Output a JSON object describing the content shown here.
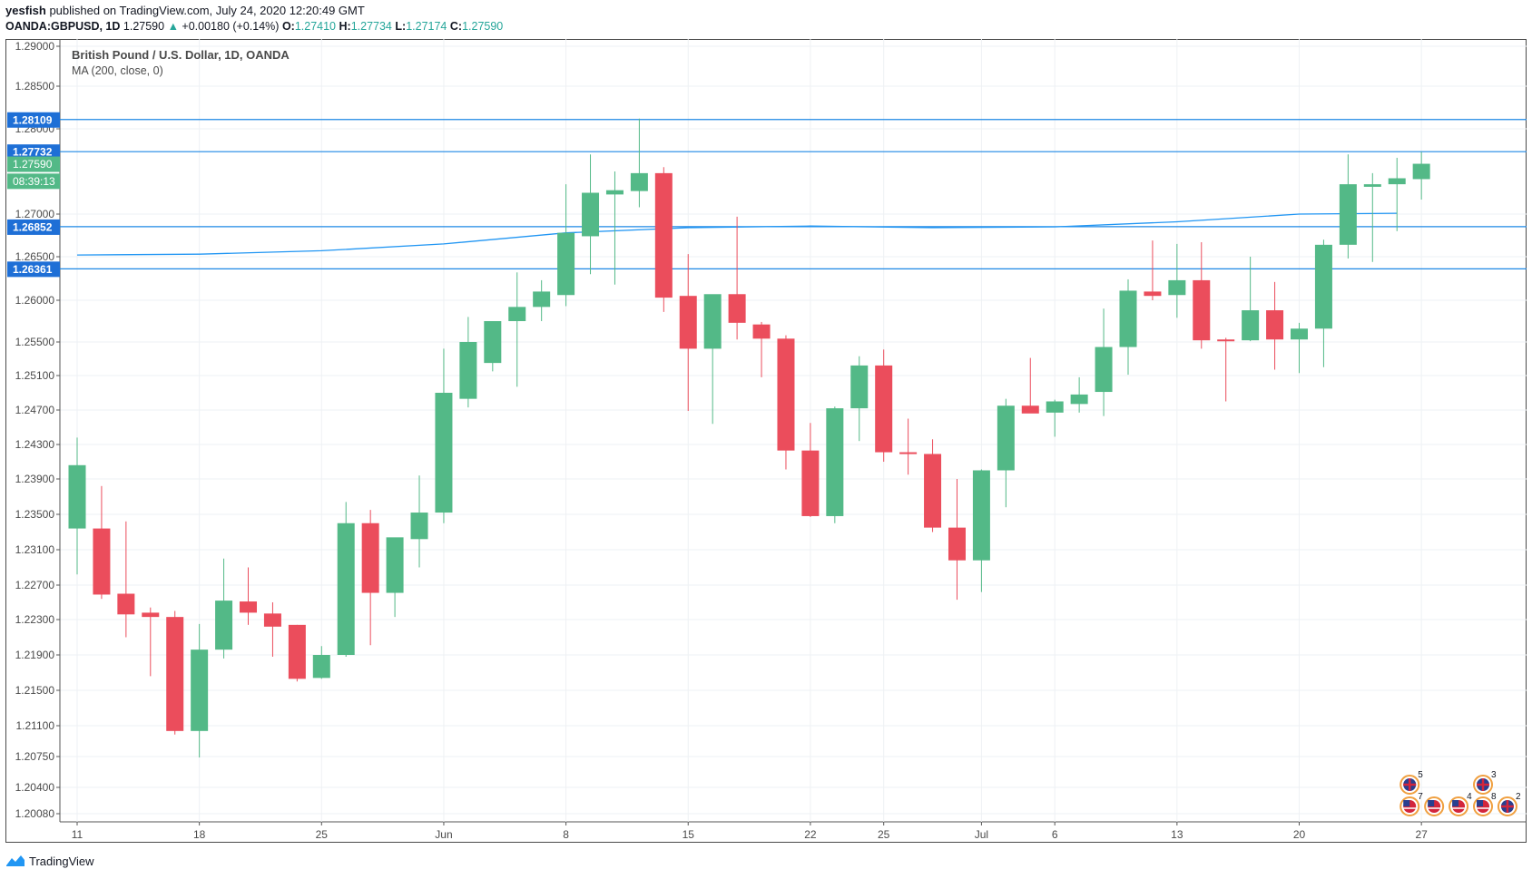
{
  "header": {
    "publisher": "yesfish",
    "published_text": "published on TradingView.com, July 24, 2020 12:20:49 GMT",
    "symbol": "OANDA:GBPUSD, 1D",
    "last": "1.27590",
    "change": "+0.00180 (+0.14%)",
    "o_label": "O:",
    "o": "1.27410",
    "h_label": "H:",
    "h": "1.27734",
    "l_label": "L:",
    "l": "1.27174",
    "c_label": "C:",
    "c": "1.27590"
  },
  "legend": {
    "title": "British Pound / U.S. Dollar, 1D, OANDA",
    "indicator": "MA (200, close, 0)"
  },
  "footer": {
    "brand": "TradingView"
  },
  "colors": {
    "up": "#53b987",
    "down": "#eb4d5c",
    "line": "#2196f3",
    "hline": "#1e88e5",
    "grid": "#eef1f4",
    "label_blue": "#1e6fd6",
    "label_green": "#53b987"
  },
  "chart_data": {
    "type": "candlestick",
    "title": "British Pound / U.S. Dollar, 1D, OANDA",
    "y_axis_ticks": [
      "1.29000",
      "1.28500",
      "1.28000",
      "1.27000",
      "1.26500",
      "1.26000",
      "1.25500",
      "1.25100",
      "1.24700",
      "1.24300",
      "1.23900",
      "1.23500",
      "1.23100",
      "1.22700",
      "1.22300",
      "1.21900",
      "1.21500",
      "1.21100",
      "1.20750",
      "1.20400",
      "1.20080"
    ],
    "x_axis_ticks": [
      {
        "label": "11",
        "index": 0
      },
      {
        "label": "18",
        "index": 5
      },
      {
        "label": "25",
        "index": 10
      },
      {
        "label": "Jun",
        "index": 15
      },
      {
        "label": "8",
        "index": 20
      },
      {
        "label": "15",
        "index": 25
      },
      {
        "label": "22",
        "index": 30
      },
      {
        "label": "25",
        "index": 33
      },
      {
        "label": "Jul",
        "index": 37
      },
      {
        "label": "6",
        "index": 40
      },
      {
        "label": "13",
        "index": 45
      },
      {
        "label": "20",
        "index": 50
      },
      {
        "label": "27",
        "index": 55
      }
    ],
    "price_labels": [
      {
        "text": "1.28109",
        "value": 1.28109,
        "kind": "blue",
        "line": true
      },
      {
        "text": "1.27732",
        "value": 1.27732,
        "kind": "blue",
        "line": true
      },
      {
        "text": "1.27590",
        "value": 1.2759,
        "kind": "green",
        "line": false
      },
      {
        "text": "08:39:13",
        "value": 1.2739,
        "kind": "green",
        "line": false
      },
      {
        "text": "1.26852",
        "value": 1.26852,
        "kind": "blue",
        "line": true
      },
      {
        "text": "1.26361",
        "value": 1.26361,
        "kind": "blue",
        "line": true
      }
    ],
    "ma200": [
      [
        0,
        1.2652
      ],
      [
        5,
        1.2653
      ],
      [
        10,
        1.2657
      ],
      [
        15,
        1.2665
      ],
      [
        20,
        1.2678
      ],
      [
        25,
        1.2684
      ],
      [
        30,
        1.2686
      ],
      [
        35,
        1.2684
      ],
      [
        40,
        1.2685
      ],
      [
        45,
        1.2691
      ],
      [
        50,
        1.27
      ],
      [
        54,
        1.2701
      ]
    ],
    "candles": [
      {
        "o": 1.2334,
        "h": 1.2438,
        "l": 1.2282,
        "c": 1.2406
      },
      {
        "o": 1.2334,
        "h": 1.2382,
        "l": 1.2254,
        "c": 1.2259
      },
      {
        "o": 1.226,
        "h": 1.2342,
        "l": 1.221,
        "c": 1.2236
      },
      {
        "o": 1.2238,
        "h": 1.2244,
        "l": 1.2166,
        "c": 1.2233
      },
      {
        "o": 1.2233,
        "h": 1.224,
        "l": 1.21,
        "c": 1.2104
      },
      {
        "o": 1.2104,
        "h": 1.2225,
        "l": 1.2074,
        "c": 1.2196
      },
      {
        "o": 1.2196,
        "h": 1.23,
        "l": 1.2186,
        "c": 1.2252
      },
      {
        "o": 1.2251,
        "h": 1.229,
        "l": 1.2224,
        "c": 1.2238
      },
      {
        "o": 1.2237,
        "h": 1.225,
        "l": 1.2188,
        "c": 1.2222
      },
      {
        "o": 1.2224,
        "h": 1.2224,
        "l": 1.216,
        "c": 1.2163
      },
      {
        "o": 1.2164,
        "h": 1.22,
        "l": 1.2163,
        "c": 1.219
      },
      {
        "o": 1.219,
        "h": 1.2364,
        "l": 1.2188,
        "c": 1.234
      },
      {
        "o": 1.234,
        "h": 1.2355,
        "l": 1.2201,
        "c": 1.2261
      },
      {
        "o": 1.2261,
        "h": 1.232,
        "l": 1.2233,
        "c": 1.2324
      },
      {
        "o": 1.2322,
        "h": 1.2394,
        "l": 1.229,
        "c": 1.2352
      },
      {
        "o": 1.2352,
        "h": 1.2542,
        "l": 1.234,
        "c": 1.249
      },
      {
        "o": 1.2483,
        "h": 1.258,
        "l": 1.2473,
        "c": 1.255
      },
      {
        "o": 1.2525,
        "h": 1.2575,
        "l": 1.2515,
        "c": 1.2575
      },
      {
        "o": 1.2575,
        "h": 1.2632,
        "l": 1.2497,
        "c": 1.2592
      },
      {
        "o": 1.2592,
        "h": 1.2623,
        "l": 1.2575,
        "c": 1.261
      },
      {
        "o": 1.2606,
        "h": 1.2735,
        "l": 1.2593,
        "c": 1.2678
      },
      {
        "o": 1.2674,
        "h": 1.277,
        "l": 1.263,
        "c": 1.2725
      },
      {
        "o": 1.2723,
        "h": 1.275,
        "l": 1.2618,
        "c": 1.2728
      },
      {
        "o": 1.2727,
        "h": 1.2812,
        "l": 1.2708,
        "c": 1.2748
      },
      {
        "o": 1.2748,
        "h": 1.2755,
        "l": 1.2586,
        "c": 1.2603
      },
      {
        "o": 1.2605,
        "h": 1.2653,
        "l": 1.2469,
        "c": 1.2542
      },
      {
        "o": 1.2542,
        "h": 1.2605,
        "l": 1.2454,
        "c": 1.2607
      },
      {
        "o": 1.2607,
        "h": 1.2697,
        "l": 1.2553,
        "c": 1.2573
      },
      {
        "o": 1.2571,
        "h": 1.2574,
        "l": 1.2508,
        "c": 1.2554
      },
      {
        "o": 1.2554,
        "h": 1.2558,
        "l": 1.2401,
        "c": 1.2423
      },
      {
        "o": 1.2423,
        "h": 1.2455,
        "l": 1.2347,
        "c": 1.2348
      },
      {
        "o": 1.2348,
        "h": 1.2474,
        "l": 1.234,
        "c": 1.2472
      },
      {
        "o": 1.2472,
        "h": 1.2533,
        "l": 1.2434,
        "c": 1.2522
      },
      {
        "o": 1.2522,
        "h": 1.2541,
        "l": 1.241,
        "c": 1.2421
      },
      {
        "o": 1.2421,
        "h": 1.246,
        "l": 1.2395,
        "c": 1.2419
      },
      {
        "o": 1.2419,
        "h": 1.2436,
        "l": 1.233,
        "c": 1.2335
      },
      {
        "o": 1.2335,
        "h": 1.239,
        "l": 1.2253,
        "c": 1.2298
      },
      {
        "o": 1.2298,
        "h": 1.2401,
        "l": 1.2262,
        "c": 1.24
      },
      {
        "o": 1.24,
        "h": 1.2483,
        "l": 1.2358,
        "c": 1.2475
      },
      {
        "o": 1.2475,
        "h": 1.2531,
        "l": 1.2467,
        "c": 1.2466
      },
      {
        "o": 1.2467,
        "h": 1.2482,
        "l": 1.2439,
        "c": 1.248
      },
      {
        "o": 1.2477,
        "h": 1.2508,
        "l": 1.2467,
        "c": 1.2488
      },
      {
        "o": 1.2491,
        "h": 1.259,
        "l": 1.2463,
        "c": 1.2544
      },
      {
        "o": 1.2544,
        "h": 1.2624,
        "l": 1.2511,
        "c": 1.2611
      },
      {
        "o": 1.261,
        "h": 1.2669,
        "l": 1.26,
        "c": 1.2605
      },
      {
        "o": 1.2606,
        "h": 1.2665,
        "l": 1.2579,
        "c": 1.2623
      },
      {
        "o": 1.2623,
        "h": 1.2667,
        "l": 1.2542,
        "c": 1.2552
      },
      {
        "o": 1.2553,
        "h": 1.2555,
        "l": 1.248,
        "c": 1.2552
      },
      {
        "o": 1.2552,
        "h": 1.265,
        "l": 1.2551,
        "c": 1.2588
      },
      {
        "o": 1.2588,
        "h": 1.2621,
        "l": 1.2517,
        "c": 1.2553
      },
      {
        "o": 1.2553,
        "h": 1.2573,
        "l": 1.2513,
        "c": 1.2566
      },
      {
        "o": 1.2566,
        "h": 1.267,
        "l": 1.252,
        "c": 1.2664
      },
      {
        "o": 1.2664,
        "h": 1.277,
        "l": 1.2648,
        "c": 1.2735
      },
      {
        "o": 1.2732,
        "h": 1.2748,
        "l": 1.2644,
        "c": 1.2735
      },
      {
        "o": 1.2735,
        "h": 1.2766,
        "l": 1.268,
        "c": 1.2742
      },
      {
        "o": 1.2741,
        "h": 1.2773,
        "l": 1.2717,
        "c": 1.2759
      }
    ],
    "events": [
      {
        "index": 54,
        "badge": "5",
        "row": 0,
        "flag": "uk"
      },
      {
        "index": 57,
        "badge": "3",
        "row": 0,
        "flag": "uk"
      },
      {
        "index": 54,
        "badge": "7",
        "row": 1,
        "flag": "us"
      },
      {
        "index": 55,
        "badge": "",
        "row": 1,
        "flag": "us"
      },
      {
        "index": 56,
        "badge": "4",
        "row": 1,
        "flag": "us"
      },
      {
        "index": 57,
        "badge": "8",
        "row": 1,
        "flag": "us"
      },
      {
        "index": 58,
        "badge": "2",
        "row": 1,
        "flag": "uk"
      }
    ]
  }
}
